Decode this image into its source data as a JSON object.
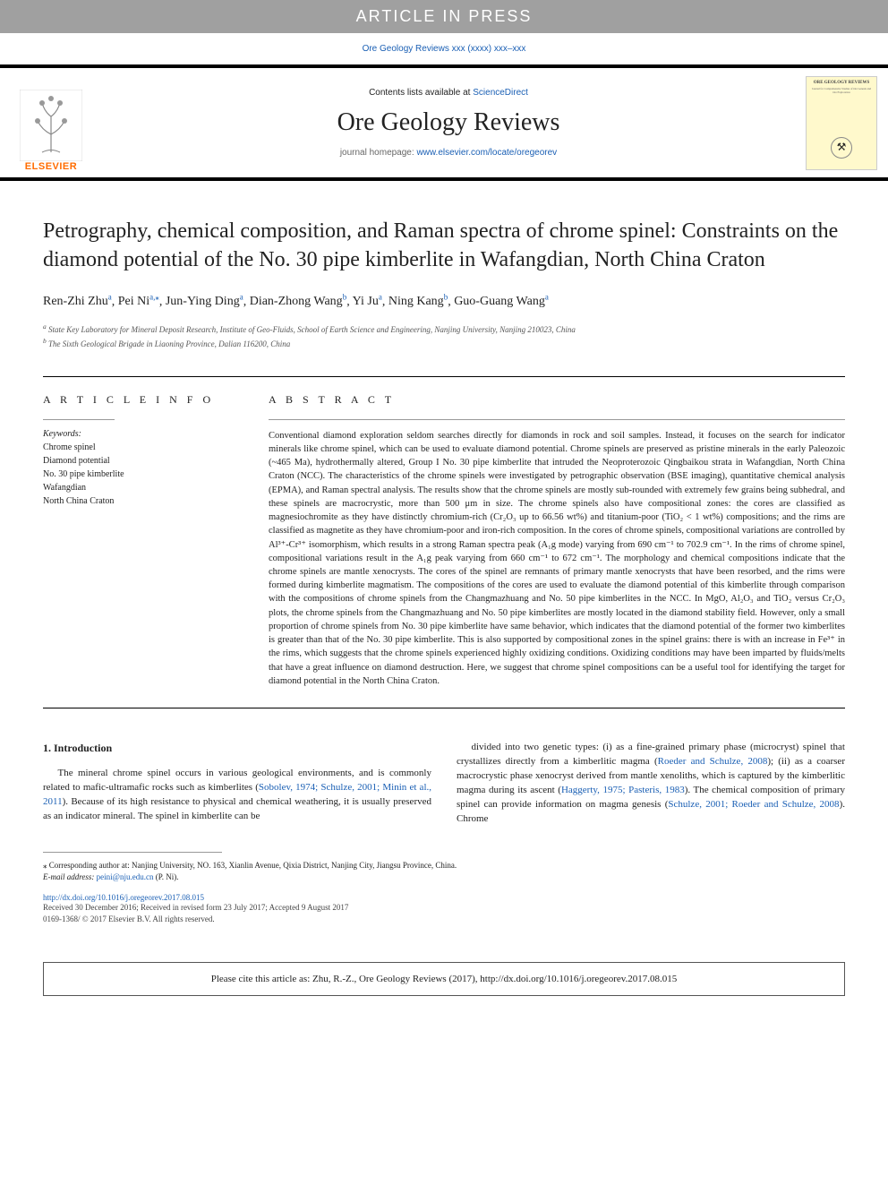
{
  "banner": "ARTICLE IN PRESS",
  "top_doi": "Ore Geology Reviews xxx (xxxx) xxx–xxx",
  "header": {
    "contents_prefix": "Contents lists available at ",
    "contents_link": "ScienceDirect",
    "journal_title": "Ore Geology Reviews",
    "homepage_prefix": "journal homepage: ",
    "homepage_link": "www.elsevier.com/locate/oregeorev",
    "publisher_text": "ELSEVIER",
    "cover_title": "ORE GEOLOGY REVIEWS",
    "cover_subtitle": "Journal for Comprehensive Studies of Ore Genesis and Ore Exploration"
  },
  "title": "Petrography, chemical composition, and Raman spectra of chrome spinel: Constraints on the diamond potential of the No. 30 pipe kimberlite in Wafangdian, North China Craton",
  "authors": [
    {
      "name": "Ren-Zhi Zhu",
      "affil": "a"
    },
    {
      "name": "Pei Ni",
      "affil": "a,⁎"
    },
    {
      "name": "Jun-Ying Ding",
      "affil": "a"
    },
    {
      "name": "Dian-Zhong Wang",
      "affil": "b"
    },
    {
      "name": "Yi Ju",
      "affil": "a"
    },
    {
      "name": "Ning Kang",
      "affil": "b"
    },
    {
      "name": "Guo-Guang Wang",
      "affil": "a"
    }
  ],
  "affiliations": [
    {
      "sup": "a",
      "text": "State Key Laboratory for Mineral Deposit Research, Institute of Geo-Fluids, School of Earth Science and Engineering, Nanjing University, Nanjing 210023, China"
    },
    {
      "sup": "b",
      "text": "The Sixth Geological Brigade in Liaoning Province, Dalian 116200, China"
    }
  ],
  "article_info_heading": "A R T I C L E  I N F O",
  "abstract_heading": "A B S T R A C T",
  "keywords_label": "Keywords:",
  "keywords": [
    "Chrome spinel",
    "Diamond potential",
    "No. 30 pipe kimberlite",
    "Wafangdian",
    "North China Craton"
  ],
  "abstract": "Conventional diamond exploration seldom searches directly for diamonds in rock and soil samples. Instead, it focuses on the search for indicator minerals like chrome spinel, which can be used to evaluate diamond potential. Chrome spinels are preserved as pristine minerals in the early Paleozoic (~465 Ma), hydrothermally altered, Group I No. 30 pipe kimberlite that intruded the Neoproterozoic Qingbaikou strata in Wafangdian, North China Craton (NCC). The characteristics of the chrome spinels were investigated by petrographic observation (BSE imaging), quantitative chemical analysis (EPMA), and Raman spectral analysis. The results show that the chrome spinels are mostly sub-rounded with extremely few grains being subhedral, and these spinels are macrocrystic, more than 500 μm in size. The chrome spinels also have compositional zones: the cores are classified as magnesiochromite as they have distinctly chromium-rich (Cr₂O₃ up to 66.56 wt%) and titanium-poor (TiO₂ < 1 wt%) compositions; and the rims are classified as magnetite as they have chromium-poor and iron-rich composition. In the cores of chrome spinels, compositional variations are controlled by Al³⁺-Cr³⁺ isomorphism, which results in a strong Raman spectra peak (A₁g mode) varying from 690 cm⁻¹ to 702.9 cm⁻¹. In the rims of chrome spinel, compositional variations result in the A₁g peak varying from 660 cm⁻¹ to 672 cm⁻¹. The morphology and chemical compositions indicate that the chrome spinels are mantle xenocrysts. The cores of the spinel are remnants of primary mantle xenocrysts that have been resorbed, and the rims were formed during kimberlite magmatism. The compositions of the cores are used to evaluate the diamond potential of this kimberlite through comparison with the compositions of chrome spinels from the Changmazhuang and No. 50 pipe kimberlites in the NCC. In MgO, Al₂O₃ and TiO₂ versus Cr₂O₃ plots, the chrome spinels from the Changmazhuang and No. 50 pipe kimberlites are mostly located in the diamond stability field. However, only a small proportion of chrome spinels from No. 30 pipe kimberlite have same behavior, which indicates that the diamond potential of the former two kimberlites is greater than that of the No. 30 pipe kimberlite. This is also supported by compositional zones in the spinel grains: there is with an increase in Fe³⁺ in the rims, which suggests that the chrome spinels experienced highly oxidizing conditions. Oxidizing conditions may have been imparted by fluids/melts that have a great influence on diamond destruction. Here, we suggest that chrome spinel compositions can be a useful tool for identifying the target for diamond potential in the North China Craton.",
  "intro": {
    "heading": "1. Introduction",
    "col1": "The mineral chrome spinel occurs in various geological environments, and is commonly related to mafic-ultramafic rocks such as kimberlites (Sobolev, 1974; Schulze, 2001; Minin et al., 2011). Because of its high resistance to physical and chemical weathering, it is usually preserved as an indicator mineral. The spinel in kimberlite can be",
    "col1_refs": "Sobolev, 1974; Schulze, 2001; Minin et al., 2011",
    "col2_pre": "divided into two genetic types: (i) as a fine-grained primary phase (microcryst) spinel that crystallizes directly from a kimberlitic magma (",
    "col2_ref1": "Roeder and Schulze, 2008",
    "col2_mid1": "); (ii) as a coarser macrocrystic phase xenocryst derived from mantle xenoliths, which is captured by the kimberlitic magma during its ascent (",
    "col2_ref2": "Haggerty, 1975; Pasteris, 1983",
    "col2_mid2": "). The chemical composition of primary spinel can provide information on magma genesis (",
    "col2_ref3": "Schulze, 2001; Roeder and Schulze, 2008",
    "col2_end": "). Chrome"
  },
  "footnote": {
    "corresponding": "⁎ Corresponding author at: Nanjing University, NO. 163, Xianlin Avenue, Qixia District, Nanjing City, Jiangsu Province, China.",
    "email_label": "E-mail address: ",
    "email": "peini@nju.edu.cn",
    "email_suffix": " (P. Ni)."
  },
  "doi_link": "http://dx.doi.org/10.1016/j.oregeorev.2017.08.015",
  "received": "Received 30 December 2016; Received in revised form 23 July 2017; Accepted 9 August 2017",
  "copyright": "0169-1368/ © 2017 Elsevier B.V. All rights reserved.",
  "cite_box": "Please cite this article as: Zhu, R.-Z., Ore Geology Reviews (2017), http://dx.doi.org/10.1016/j.oregeorev.2017.08.015",
  "colors": {
    "banner_bg": "#a0a0a0",
    "link": "#1a5fb4",
    "elsevier_orange": "#ff6c00",
    "cover_bg": "#fff9cc"
  }
}
